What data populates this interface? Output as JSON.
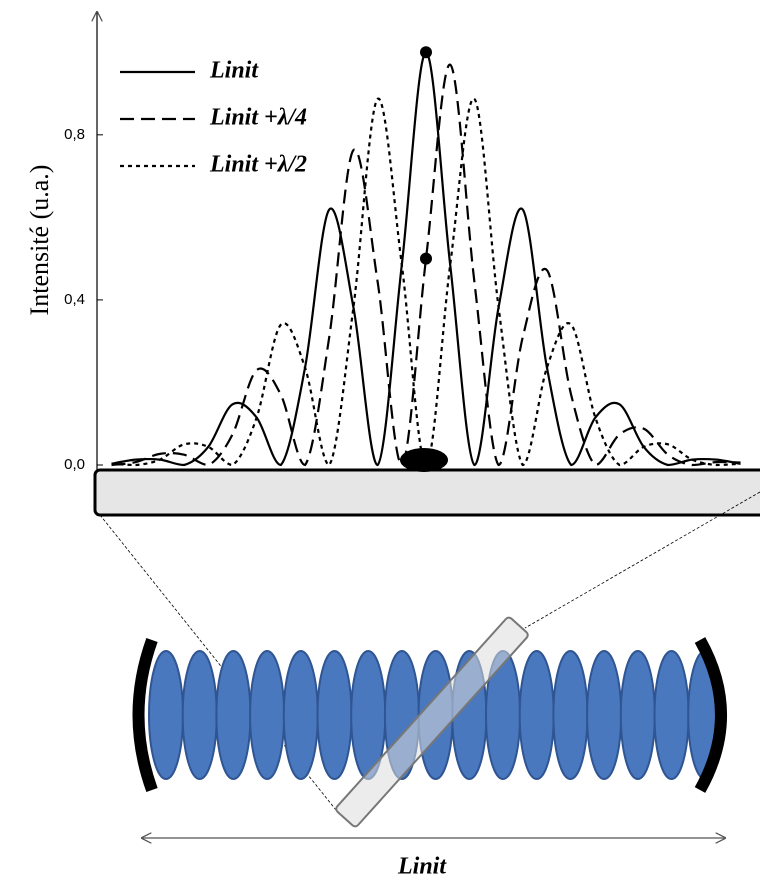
{
  "chart_data": {
    "type": "line",
    "y_label": "Intensité (u.a.)",
    "x": [
      -3.25,
      -3,
      -2.75,
      -2.5,
      -2.25,
      -2,
      -1.75,
      -1.5,
      -1.25,
      -1,
      -0.75,
      -0.5,
      -0.25,
      0,
      0.25,
      0.5,
      0.75,
      1,
      1.25,
      1.5,
      1.75,
      2,
      2.25,
      2.5,
      2.75,
      3,
      3.25
    ],
    "xlim": [
      -3.4,
      3.4
    ],
    "ylim": [
      0,
      1.1
    ],
    "yticks": [
      {
        "value": 0,
        "label": "0,0"
      },
      {
        "value": 0.4,
        "label": "0,4"
      },
      {
        "value": 0.8,
        "label": "0,8"
      }
    ],
    "legend": "top-left",
    "series": [
      {
        "name": "Linit",
        "color": "#000000",
        "dash": "solid",
        "values": [
          0.003,
          0.013,
          0.013,
          0,
          0.044,
          0.147,
          0.115,
          0,
          0.236,
          0.619,
          0.382,
          0,
          0.485,
          1,
          0.485,
          0,
          0.382,
          0.619,
          0.236,
          0,
          0.115,
          0.147,
          0.044,
          0,
          0.013,
          0.013,
          0.003
        ]
      },
      {
        "name": "Linit +λ/4",
        "color": "#000000",
        "dash": "dashed",
        "values": [
          0,
          0.007,
          0.027,
          0.025,
          0,
          0.074,
          0.23,
          0.17,
          0,
          0.31,
          0.763,
          0.444,
          0,
          0.5,
          0.97,
          0.444,
          0,
          0.31,
          0.472,
          0.17,
          0,
          0.074,
          0.088,
          0.025,
          0,
          0.007,
          0.006
        ]
      },
      {
        "name": "Linit +λ/2",
        "color": "#000000",
        "dash": "dotted",
        "values": [
          0.003,
          0,
          0.013,
          0.05,
          0.044,
          0,
          0.115,
          0.34,
          0.236,
          0,
          0.382,
          0.887,
          0.485,
          0,
          0.485,
          0.887,
          0.382,
          0,
          0.236,
          0.34,
          0.115,
          0,
          0.044,
          0.05,
          0.013,
          0,
          0.003
        ]
      }
    ]
  },
  "diagram_label": "Linit"
}
